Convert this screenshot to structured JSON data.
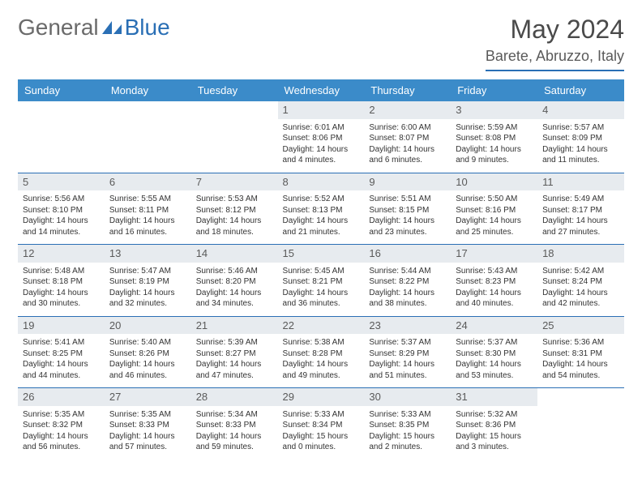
{
  "brand": {
    "part1": "General",
    "part2": "Blue"
  },
  "header": {
    "title": "May 2024",
    "location": "Barete, Abruzzo, Italy"
  },
  "colors": {
    "header_bg": "#3b8bc9",
    "header_text": "#ffffff",
    "daynum_bg": "#e7ebef",
    "border": "#2a6fb5",
    "body_text": "#333333",
    "brand_gray": "#6a6a6a",
    "brand_blue": "#2a6fb5"
  },
  "dayHeaders": [
    "Sunday",
    "Monday",
    "Tuesday",
    "Wednesday",
    "Thursday",
    "Friday",
    "Saturday"
  ],
  "weeks": [
    [
      {
        "empty": true
      },
      {
        "empty": true
      },
      {
        "empty": true
      },
      {
        "num": "1",
        "sunrise": "6:01 AM",
        "sunset": "8:06 PM",
        "daylight": "14 hours and 4 minutes."
      },
      {
        "num": "2",
        "sunrise": "6:00 AM",
        "sunset": "8:07 PM",
        "daylight": "14 hours and 6 minutes."
      },
      {
        "num": "3",
        "sunrise": "5:59 AM",
        "sunset": "8:08 PM",
        "daylight": "14 hours and 9 minutes."
      },
      {
        "num": "4",
        "sunrise": "5:57 AM",
        "sunset": "8:09 PM",
        "daylight": "14 hours and 11 minutes."
      }
    ],
    [
      {
        "num": "5",
        "sunrise": "5:56 AM",
        "sunset": "8:10 PM",
        "daylight": "14 hours and 14 minutes."
      },
      {
        "num": "6",
        "sunrise": "5:55 AM",
        "sunset": "8:11 PM",
        "daylight": "14 hours and 16 minutes."
      },
      {
        "num": "7",
        "sunrise": "5:53 AM",
        "sunset": "8:12 PM",
        "daylight": "14 hours and 18 minutes."
      },
      {
        "num": "8",
        "sunrise": "5:52 AM",
        "sunset": "8:13 PM",
        "daylight": "14 hours and 21 minutes."
      },
      {
        "num": "9",
        "sunrise": "5:51 AM",
        "sunset": "8:15 PM",
        "daylight": "14 hours and 23 minutes."
      },
      {
        "num": "10",
        "sunrise": "5:50 AM",
        "sunset": "8:16 PM",
        "daylight": "14 hours and 25 minutes."
      },
      {
        "num": "11",
        "sunrise": "5:49 AM",
        "sunset": "8:17 PM",
        "daylight": "14 hours and 27 minutes."
      }
    ],
    [
      {
        "num": "12",
        "sunrise": "5:48 AM",
        "sunset": "8:18 PM",
        "daylight": "14 hours and 30 minutes."
      },
      {
        "num": "13",
        "sunrise": "5:47 AM",
        "sunset": "8:19 PM",
        "daylight": "14 hours and 32 minutes."
      },
      {
        "num": "14",
        "sunrise": "5:46 AM",
        "sunset": "8:20 PM",
        "daylight": "14 hours and 34 minutes."
      },
      {
        "num": "15",
        "sunrise": "5:45 AM",
        "sunset": "8:21 PM",
        "daylight": "14 hours and 36 minutes."
      },
      {
        "num": "16",
        "sunrise": "5:44 AM",
        "sunset": "8:22 PM",
        "daylight": "14 hours and 38 minutes."
      },
      {
        "num": "17",
        "sunrise": "5:43 AM",
        "sunset": "8:23 PM",
        "daylight": "14 hours and 40 minutes."
      },
      {
        "num": "18",
        "sunrise": "5:42 AM",
        "sunset": "8:24 PM",
        "daylight": "14 hours and 42 minutes."
      }
    ],
    [
      {
        "num": "19",
        "sunrise": "5:41 AM",
        "sunset": "8:25 PM",
        "daylight": "14 hours and 44 minutes."
      },
      {
        "num": "20",
        "sunrise": "5:40 AM",
        "sunset": "8:26 PM",
        "daylight": "14 hours and 46 minutes."
      },
      {
        "num": "21",
        "sunrise": "5:39 AM",
        "sunset": "8:27 PM",
        "daylight": "14 hours and 47 minutes."
      },
      {
        "num": "22",
        "sunrise": "5:38 AM",
        "sunset": "8:28 PM",
        "daylight": "14 hours and 49 minutes."
      },
      {
        "num": "23",
        "sunrise": "5:37 AM",
        "sunset": "8:29 PM",
        "daylight": "14 hours and 51 minutes."
      },
      {
        "num": "24",
        "sunrise": "5:37 AM",
        "sunset": "8:30 PM",
        "daylight": "14 hours and 53 minutes."
      },
      {
        "num": "25",
        "sunrise": "5:36 AM",
        "sunset": "8:31 PM",
        "daylight": "14 hours and 54 minutes."
      }
    ],
    [
      {
        "num": "26",
        "sunrise": "5:35 AM",
        "sunset": "8:32 PM",
        "daylight": "14 hours and 56 minutes."
      },
      {
        "num": "27",
        "sunrise": "5:35 AM",
        "sunset": "8:33 PM",
        "daylight": "14 hours and 57 minutes."
      },
      {
        "num": "28",
        "sunrise": "5:34 AM",
        "sunset": "8:33 PM",
        "daylight": "14 hours and 59 minutes."
      },
      {
        "num": "29",
        "sunrise": "5:33 AM",
        "sunset": "8:34 PM",
        "daylight": "15 hours and 0 minutes."
      },
      {
        "num": "30",
        "sunrise": "5:33 AM",
        "sunset": "8:35 PM",
        "daylight": "15 hours and 2 minutes."
      },
      {
        "num": "31",
        "sunrise": "5:32 AM",
        "sunset": "8:36 PM",
        "daylight": "15 hours and 3 minutes."
      },
      {
        "empty": true
      }
    ]
  ],
  "labels": {
    "sunrise": "Sunrise: ",
    "sunset": "Sunset: ",
    "daylight": "Daylight: "
  }
}
